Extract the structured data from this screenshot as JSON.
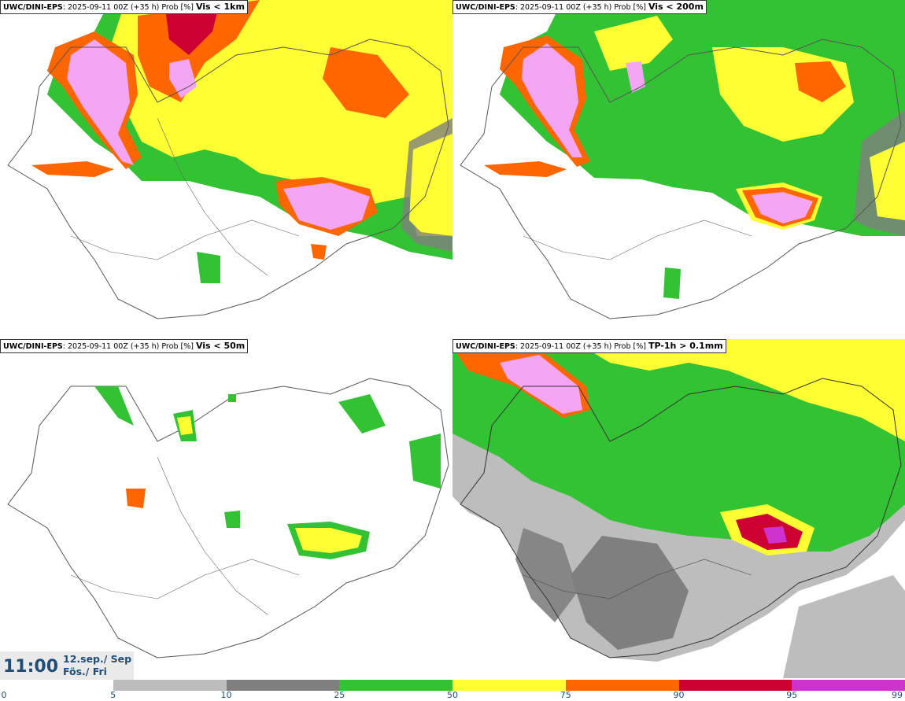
{
  "panels": [
    {
      "source": "UWC/DINI-EPS",
      "run": ": 2025-09-11 00Z (+35 h) Prob [%]",
      "threshold": "Vis < 1km"
    },
    {
      "source": "UWC/DINI-EPS",
      "run": ": 2025-09-11 00Z (+35 h) Prob [%]",
      "threshold": "Vis < 200m"
    },
    {
      "source": "UWC/DINI-EPS",
      "run": ": 2025-09-11 00Z (+35 h) Prob [%]",
      "threshold": "Vis < 50m"
    },
    {
      "source": "UWC/DINI-EPS",
      "run": ": 2025-09-11 00Z (+35 h) Prob [%]",
      "threshold": "TP-1h > 0.1mm"
    }
  ],
  "valid_time": {
    "time": "11:00",
    "date_line1": "12.sep./ Sep",
    "date_line2": "Fös./ Fri"
  },
  "colorbar": {
    "ticks": [
      "0",
      "5",
      "10",
      "25",
      "50",
      "75",
      "90",
      "95",
      "99"
    ],
    "colors": [
      "#ffffff",
      "#bdbdbd",
      "#7f7f7f",
      "#33c233",
      "#ffff33",
      "#ff6600",
      "#cc0033",
      "#cc33cc",
      "#f4a6f4"
    ]
  }
}
